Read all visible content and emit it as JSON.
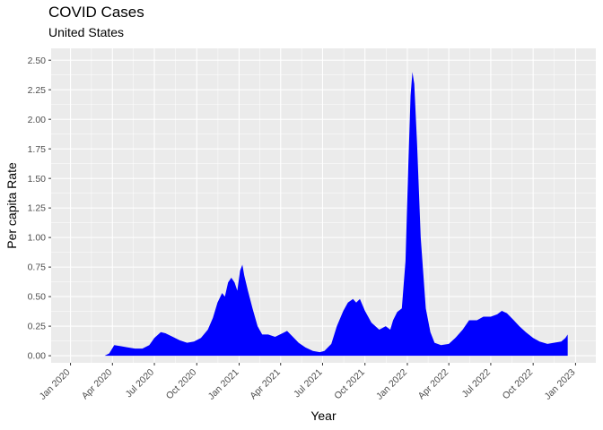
{
  "chart_data": {
    "type": "area",
    "title": "COVID Cases",
    "subtitle": "United States",
    "xlabel": "Year",
    "ylabel": "Per capita Rate",
    "x_axis_type": "date",
    "xlim": [
      "2019-11-20",
      "2023-02-14"
    ],
    "ylim": [
      -0.06,
      2.6
    ],
    "x_ticks": [
      {
        "date": "2020-01-01",
        "label": "Jan 2020"
      },
      {
        "date": "2020-04-01",
        "label": "Apr 2020"
      },
      {
        "date": "2020-07-01",
        "label": "Jul 2020"
      },
      {
        "date": "2020-10-01",
        "label": "Oct 2020"
      },
      {
        "date": "2021-01-01",
        "label": "Jan 2021"
      },
      {
        "date": "2021-04-01",
        "label": "Apr 2021"
      },
      {
        "date": "2021-07-01",
        "label": "Jul 2021"
      },
      {
        "date": "2021-10-01",
        "label": "Oct 2021"
      },
      {
        "date": "2022-01-01",
        "label": "Jan 2022"
      },
      {
        "date": "2022-04-01",
        "label": "Apr 2022"
      },
      {
        "date": "2022-07-01",
        "label": "Jul 2022"
      },
      {
        "date": "2022-10-01",
        "label": "Oct 2022"
      },
      {
        "date": "2023-01-01",
        "label": "Jan 2023"
      }
    ],
    "y_ticks": [
      {
        "value": 0,
        "label": "0.00"
      },
      {
        "value": 0.25,
        "label": "0.25"
      },
      {
        "value": 0.5,
        "label": "0.50"
      },
      {
        "value": 0.75,
        "label": "0.75"
      },
      {
        "value": 1.0,
        "label": "1.00"
      },
      {
        "value": 1.25,
        "label": "1.25"
      },
      {
        "value": 1.5,
        "label": "1.50"
      },
      {
        "value": 1.75,
        "label": "1.75"
      },
      {
        "value": 2.0,
        "label": "2.00"
      },
      {
        "value": 2.25,
        "label": "2.25"
      },
      {
        "value": 2.5,
        "label": "2.50"
      }
    ],
    "grid": true,
    "fill_color": "#0000ff",
    "panel_color": "#ebebeb",
    "grid_color": "#ffffff",
    "series": [
      {
        "x": [
          "2020-03-01",
          "2020-03-15",
          "2020-03-25",
          "2020-04-05",
          "2020-04-20",
          "2020-05-05",
          "2020-05-20",
          "2020-06-05",
          "2020-06-20",
          "2020-07-01",
          "2020-07-15",
          "2020-07-25",
          "2020-08-10",
          "2020-08-25",
          "2020-09-10",
          "2020-09-25",
          "2020-10-10",
          "2020-10-25",
          "2020-11-05",
          "2020-11-15",
          "2020-11-25",
          "2020-12-01",
          "2020-12-08",
          "2020-12-15",
          "2020-12-22",
          "2020-12-28",
          "2021-01-03",
          "2021-01-08",
          "2021-01-12",
          "2021-01-20",
          "2021-01-30",
          "2021-02-10",
          "2021-02-20",
          "2021-03-05",
          "2021-03-20",
          "2021-04-05",
          "2021-04-15",
          "2021-04-25",
          "2021-05-10",
          "2021-05-25",
          "2021-06-10",
          "2021-06-25",
          "2021-07-05",
          "2021-07-20",
          "2021-08-01",
          "2021-08-15",
          "2021-08-25",
          "2021-09-05",
          "2021-09-12",
          "2021-09-20",
          "2021-10-01",
          "2021-10-15",
          "2021-11-01",
          "2021-11-15",
          "2021-11-25",
          "2021-12-01",
          "2021-12-10",
          "2021-12-20",
          "2021-12-28",
          "2022-01-03",
          "2022-01-08",
          "2022-01-12",
          "2022-01-16",
          "2022-01-22",
          "2022-01-30",
          "2022-02-10",
          "2022-02-20",
          "2022-03-01",
          "2022-03-15",
          "2022-04-01",
          "2022-04-15",
          "2022-05-01",
          "2022-05-15",
          "2022-06-01",
          "2022-06-15",
          "2022-07-01",
          "2022-07-15",
          "2022-07-25",
          "2022-08-05",
          "2022-08-20",
          "2022-09-01",
          "2022-09-15",
          "2022-10-01",
          "2022-10-15",
          "2022-11-01",
          "2022-11-15",
          "2022-12-01",
          "2022-12-10",
          "2022-12-15"
        ],
        "values": [
          0,
          0,
          0.02,
          0.09,
          0.08,
          0.07,
          0.06,
          0.06,
          0.09,
          0.15,
          0.2,
          0.19,
          0.16,
          0.13,
          0.11,
          0.12,
          0.15,
          0.22,
          0.32,
          0.45,
          0.53,
          0.5,
          0.62,
          0.66,
          0.62,
          0.55,
          0.72,
          0.77,
          0.68,
          0.55,
          0.4,
          0.25,
          0.18,
          0.18,
          0.16,
          0.19,
          0.21,
          0.17,
          0.11,
          0.07,
          0.04,
          0.03,
          0.04,
          0.1,
          0.25,
          0.38,
          0.45,
          0.48,
          0.45,
          0.48,
          0.38,
          0.28,
          0.22,
          0.25,
          0.22,
          0.3,
          0.37,
          0.4,
          0.8,
          1.6,
          2.2,
          2.4,
          2.3,
          1.8,
          1.0,
          0.4,
          0.2,
          0.11,
          0.09,
          0.1,
          0.15,
          0.22,
          0.3,
          0.3,
          0.33,
          0.33,
          0.35,
          0.38,
          0.36,
          0.3,
          0.25,
          0.2,
          0.15,
          0.12,
          0.1,
          0.11,
          0.12,
          0.15,
          0.18
        ]
      }
    ]
  }
}
